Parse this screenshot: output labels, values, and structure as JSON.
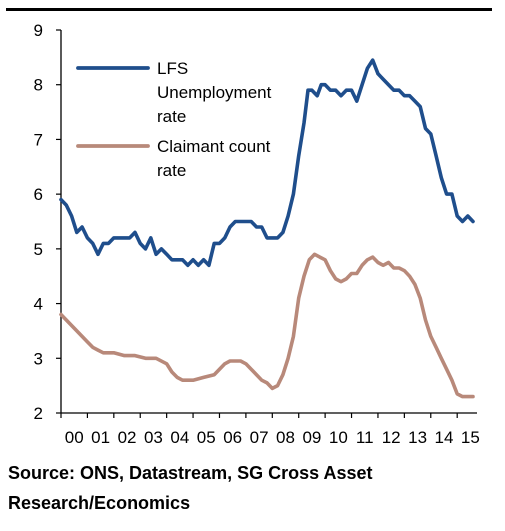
{
  "chart_data": {
    "type": "line",
    "title": "",
    "xlabel": "",
    "ylabel": "",
    "ylim": [
      2,
      9
    ],
    "xlim": [
      2000,
      2015.75
    ],
    "y_ticks": [
      "2",
      "3",
      "4",
      "5",
      "6",
      "7",
      "8",
      "9"
    ],
    "x_tick_labels": [
      "00",
      "01",
      "02",
      "03",
      "04",
      "05",
      "06",
      "07",
      "08",
      "09",
      "10",
      "11",
      "12",
      "13",
      "14",
      "15"
    ],
    "grid": false,
    "legend_position": "top-left",
    "series": [
      {
        "name": "LFS Unemployment rate",
        "legend_lines": [
          "LFS",
          "Unemployment",
          "rate"
        ],
        "color": "#1f4e8c",
        "points": [
          [
            2000.0,
            5.9
          ],
          [
            2000.2,
            5.8
          ],
          [
            2000.4,
            5.6
          ],
          [
            2000.6,
            5.3
          ],
          [
            2000.8,
            5.4
          ],
          [
            2001.0,
            5.2
          ],
          [
            2001.2,
            5.1
          ],
          [
            2001.4,
            4.9
          ],
          [
            2001.6,
            5.1
          ],
          [
            2001.8,
            5.1
          ],
          [
            2002.0,
            5.2
          ],
          [
            2002.2,
            5.2
          ],
          [
            2002.4,
            5.2
          ],
          [
            2002.6,
            5.2
          ],
          [
            2002.8,
            5.3
          ],
          [
            2003.0,
            5.1
          ],
          [
            2003.2,
            5.0
          ],
          [
            2003.4,
            5.2
          ],
          [
            2003.6,
            4.9
          ],
          [
            2003.8,
            5.0
          ],
          [
            2004.0,
            4.9
          ],
          [
            2004.2,
            4.8
          ],
          [
            2004.4,
            4.8
          ],
          [
            2004.6,
            4.8
          ],
          [
            2004.8,
            4.7
          ],
          [
            2005.0,
            4.8
          ],
          [
            2005.2,
            4.7
          ],
          [
            2005.4,
            4.8
          ],
          [
            2005.6,
            4.7
          ],
          [
            2005.8,
            5.1
          ],
          [
            2006.0,
            5.1
          ],
          [
            2006.2,
            5.2
          ],
          [
            2006.4,
            5.4
          ],
          [
            2006.6,
            5.5
          ],
          [
            2006.8,
            5.5
          ],
          [
            2007.0,
            5.5
          ],
          [
            2007.2,
            5.5
          ],
          [
            2007.4,
            5.4
          ],
          [
            2007.6,
            5.4
          ],
          [
            2007.8,
            5.2
          ],
          [
            2008.0,
            5.2
          ],
          [
            2008.2,
            5.2
          ],
          [
            2008.4,
            5.3
          ],
          [
            2008.6,
            5.6
          ],
          [
            2008.8,
            6.0
          ],
          [
            2009.0,
            6.7
          ],
          [
            2009.2,
            7.3
          ],
          [
            2009.35,
            7.9
          ],
          [
            2009.5,
            7.9
          ],
          [
            2009.7,
            7.8
          ],
          [
            2009.85,
            8.0
          ],
          [
            2010.0,
            8.0
          ],
          [
            2010.2,
            7.9
          ],
          [
            2010.4,
            7.9
          ],
          [
            2010.6,
            7.8
          ],
          [
            2010.8,
            7.9
          ],
          [
            2011.0,
            7.9
          ],
          [
            2011.2,
            7.7
          ],
          [
            2011.4,
            8.0
          ],
          [
            2011.6,
            8.3
          ],
          [
            2011.8,
            8.45
          ],
          [
            2012.0,
            8.2
          ],
          [
            2012.2,
            8.1
          ],
          [
            2012.4,
            8.0
          ],
          [
            2012.6,
            7.9
          ],
          [
            2012.8,
            7.9
          ],
          [
            2013.0,
            7.8
          ],
          [
            2013.2,
            7.8
          ],
          [
            2013.4,
            7.7
          ],
          [
            2013.6,
            7.6
          ],
          [
            2013.8,
            7.2
          ],
          [
            2014.0,
            7.1
          ],
          [
            2014.2,
            6.7
          ],
          [
            2014.4,
            6.3
          ],
          [
            2014.6,
            6.0
          ],
          [
            2014.8,
            6.0
          ],
          [
            2015.0,
            5.6
          ],
          [
            2015.2,
            5.5
          ],
          [
            2015.4,
            5.6
          ],
          [
            2015.6,
            5.5
          ]
        ]
      },
      {
        "name": "Claimant count rate",
        "legend_lines": [
          "Claimant count",
          "rate"
        ],
        "color": "#b8897a",
        "points": [
          [
            2000.0,
            3.8
          ],
          [
            2000.2,
            3.7
          ],
          [
            2000.4,
            3.6
          ],
          [
            2000.6,
            3.5
          ],
          [
            2000.8,
            3.4
          ],
          [
            2001.0,
            3.3
          ],
          [
            2001.2,
            3.2
          ],
          [
            2001.4,
            3.15
          ],
          [
            2001.6,
            3.1
          ],
          [
            2002.0,
            3.1
          ],
          [
            2002.4,
            3.05
          ],
          [
            2002.8,
            3.05
          ],
          [
            2003.2,
            3.0
          ],
          [
            2003.6,
            3.0
          ],
          [
            2004.0,
            2.9
          ],
          [
            2004.2,
            2.75
          ],
          [
            2004.4,
            2.65
          ],
          [
            2004.6,
            2.6
          ],
          [
            2005.0,
            2.6
          ],
          [
            2005.4,
            2.65
          ],
          [
            2005.8,
            2.7
          ],
          [
            2006.0,
            2.8
          ],
          [
            2006.2,
            2.9
          ],
          [
            2006.4,
            2.95
          ],
          [
            2006.8,
            2.95
          ],
          [
            2007.0,
            2.9
          ],
          [
            2007.2,
            2.8
          ],
          [
            2007.4,
            2.7
          ],
          [
            2007.6,
            2.6
          ],
          [
            2007.8,
            2.55
          ],
          [
            2008.0,
            2.45
          ],
          [
            2008.2,
            2.5
          ],
          [
            2008.4,
            2.7
          ],
          [
            2008.6,
            3.0
          ],
          [
            2008.8,
            3.4
          ],
          [
            2009.0,
            4.1
          ],
          [
            2009.2,
            4.5
          ],
          [
            2009.4,
            4.8
          ],
          [
            2009.6,
            4.9
          ],
          [
            2009.8,
            4.85
          ],
          [
            2010.0,
            4.8
          ],
          [
            2010.2,
            4.6
          ],
          [
            2010.4,
            4.45
          ],
          [
            2010.6,
            4.4
          ],
          [
            2010.8,
            4.45
          ],
          [
            2011.0,
            4.55
          ],
          [
            2011.2,
            4.55
          ],
          [
            2011.4,
            4.7
          ],
          [
            2011.6,
            4.8
          ],
          [
            2011.8,
            4.85
          ],
          [
            2012.0,
            4.75
          ],
          [
            2012.2,
            4.7
          ],
          [
            2012.4,
            4.75
          ],
          [
            2012.6,
            4.65
          ],
          [
            2012.8,
            4.65
          ],
          [
            2013.0,
            4.6
          ],
          [
            2013.2,
            4.5
          ],
          [
            2013.4,
            4.35
          ],
          [
            2013.6,
            4.1
          ],
          [
            2013.8,
            3.7
          ],
          [
            2014.0,
            3.4
          ],
          [
            2014.2,
            3.2
          ],
          [
            2014.4,
            3.0
          ],
          [
            2014.6,
            2.8
          ],
          [
            2014.8,
            2.6
          ],
          [
            2015.0,
            2.35
          ],
          [
            2015.2,
            2.3
          ],
          [
            2015.4,
            2.3
          ],
          [
            2015.6,
            2.3
          ]
        ]
      }
    ]
  },
  "source_text": "Source: ONS, Datastream, SG Cross Asset Research/Economics"
}
